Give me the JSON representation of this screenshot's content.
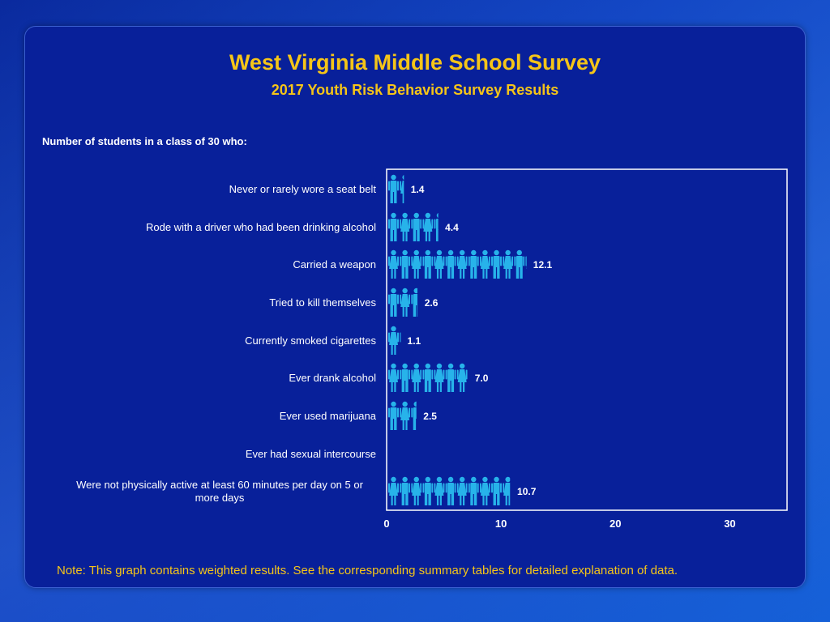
{
  "header": {
    "title": "West Virginia Middle School Survey",
    "subtitle": "2017 Youth Risk Behavior Survey Results"
  },
  "question": "Number of students in a class of 30 who:",
  "note": "Note: This graph contains weighted results. See the corresponding summary tables for detailed explanation of data.",
  "colors": {
    "title": "#f5c518",
    "figure": "#27b3ea",
    "axis": "#ffffff"
  },
  "chart_data": {
    "type": "bar",
    "orientation": "horizontal",
    "mark": "pictograph-person",
    "categories": [
      "Never or rarely wore a seat belt",
      "Rode with a driver who had been drinking alcohol",
      "Carried a weapon",
      "Tried to kill themselves",
      "Currently smoked cigarettes",
      "Ever drank alcohol",
      "Ever used marijuana",
      "Ever had sexual intercourse",
      "Were not physically active at least 60 minutes per day on 5 or more days"
    ],
    "values": [
      1.4,
      4.4,
      12.1,
      2.6,
      1.1,
      7.0,
      2.5,
      null,
      10.7
    ],
    "value_labels": [
      "1.4",
      "4.4",
      "12.1",
      "2.6",
      "1.1",
      "7.0",
      "2.5",
      "",
      "10.7"
    ],
    "xlim": [
      0,
      35
    ],
    "xticks": [
      0,
      10,
      20,
      30
    ],
    "xlabel": "",
    "ylabel": "",
    "grid": false,
    "legend": "none"
  }
}
